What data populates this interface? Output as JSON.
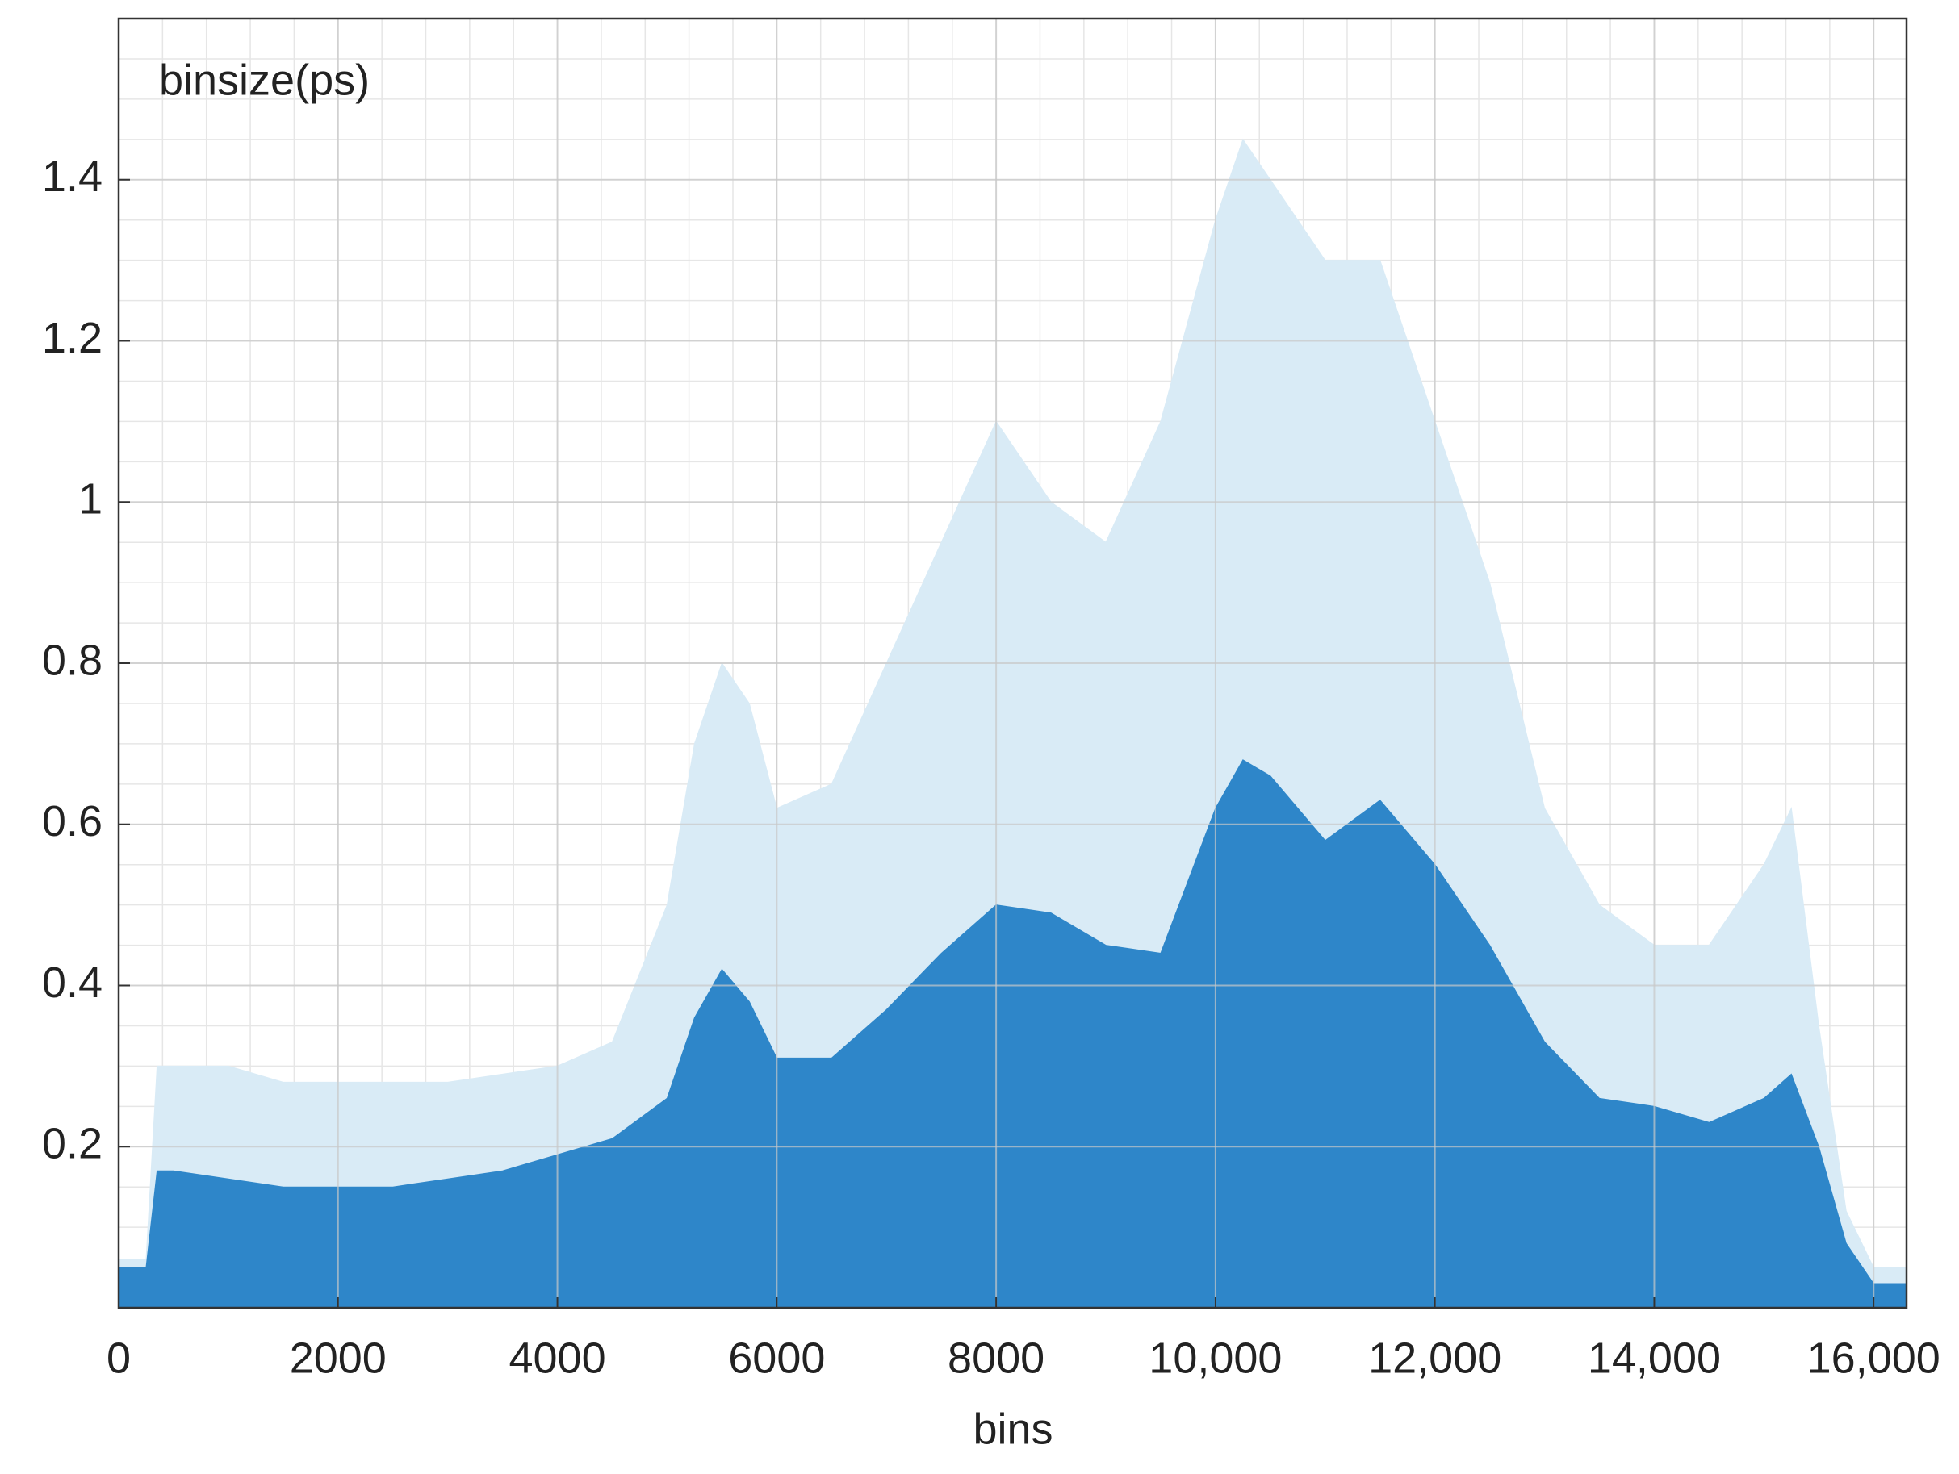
{
  "chart_data": {
    "type": "area",
    "annotation": "binsize(ps)",
    "x_label": "bins",
    "x": [
      0,
      250,
      350,
      500,
      1000,
      1500,
      2000,
      2500,
      3000,
      3500,
      4000,
      4500,
      5000,
      5250,
      5500,
      5750,
      6000,
      6500,
      7000,
      7500,
      8000,
      8500,
      9000,
      9500,
      10000,
      10250,
      10500,
      11000,
      11500,
      12000,
      12500,
      13000,
      13500,
      14000,
      14500,
      15000,
      15250,
      15500,
      15750,
      16000,
      16300
    ],
    "series": [
      {
        "color": "#d9ebf6",
        "values": [
          0.06,
          0.06,
          0.3,
          0.3,
          0.3,
          0.28,
          0.28,
          0.28,
          0.28,
          0.29,
          0.3,
          0.33,
          0.5,
          0.7,
          0.8,
          0.75,
          0.62,
          0.65,
          0.8,
          0.95,
          1.1,
          1.0,
          0.95,
          1.1,
          1.35,
          1.45,
          1.4,
          1.3,
          1.3,
          1.1,
          0.9,
          0.62,
          0.5,
          0.45,
          0.45,
          0.55,
          0.62,
          0.35,
          0.12,
          0.05,
          0.05
        ]
      },
      {
        "color": "#2e86c9",
        "values": [
          0.05,
          0.05,
          0.17,
          0.17,
          0.16,
          0.15,
          0.15,
          0.15,
          0.16,
          0.17,
          0.19,
          0.21,
          0.26,
          0.36,
          0.42,
          0.38,
          0.31,
          0.31,
          0.37,
          0.44,
          0.5,
          0.49,
          0.45,
          0.44,
          0.62,
          0.68,
          0.66,
          0.58,
          0.63,
          0.55,
          0.45,
          0.33,
          0.26,
          0.25,
          0.23,
          0.26,
          0.29,
          0.2,
          0.08,
          0.03,
          0.03
        ]
      }
    ],
    "xlim": [
      0,
      16300
    ],
    "ylim": [
      0,
      1.6
    ],
    "xticks": [
      0,
      2000,
      4000,
      6000,
      8000,
      {
        "value": 10000,
        "label": "10,000"
      },
      {
        "value": 12000,
        "label": "12,000"
      },
      {
        "value": 14000,
        "label": "14,000"
      },
      {
        "value": 16000,
        "label": "16,000"
      }
    ],
    "yticks": [
      0.2,
      0.4,
      0.6,
      0.8,
      1,
      1.2,
      1.4
    ],
    "grid": true,
    "minor_grid": true
  }
}
